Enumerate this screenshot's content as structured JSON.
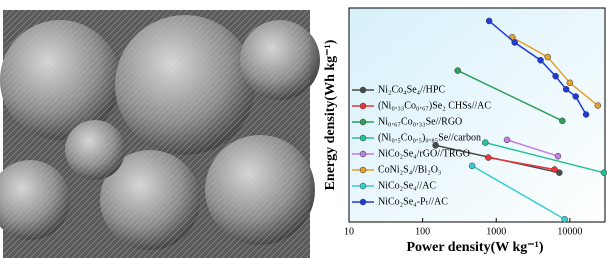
{
  "chart_data": {
    "type": "line",
    "x_label": "Power density(W kg⁻¹)",
    "y_label": "Energy density(Wh kg⁻¹)",
    "log_x": true,
    "log_y": true,
    "xlim": [
      10,
      30000
    ],
    "xticks": [
      10,
      100,
      1000,
      10000
    ],
    "ylim": [
      10,
      100
    ],
    "legend": "center-left",
    "series": [
      {
        "name": "Ni₂Co₄Se₄//HPC",
        "color": "#4a4a4a",
        "x": [
          150,
          7200
        ],
        "values": [
          22.8,
          17
        ]
      },
      {
        "name": "(Ni₀.₃₃Co₀.₆₇)Se₂ CHSs//AC",
        "color": "#e8363c",
        "x": [
          780,
          6200
        ],
        "values": [
          20,
          17.6
        ]
      },
      {
        "name": "Ni₀.₆₇Co₀.₃₃Se//RGO",
        "color": "#2f9e5a",
        "x": [
          300,
          7900
        ],
        "values": [
          51,
          29.7
        ]
      },
      {
        "name": "(Ni₀.₅Co₀.₅)₀.₈₅Se//carbon",
        "color": "#27c196",
        "x": [
          710,
          29000
        ],
        "values": [
          23.5,
          17
        ]
      },
      {
        "name": "NiCo₂Se₄/rGO//TRGO",
        "color": "#c27ee8",
        "x": [
          1400,
          6900
        ],
        "values": [
          24.2,
          20.3
        ]
      },
      {
        "name": "CoNi₂S₄//Bi₂O₃",
        "color": "#e2a22c",
        "x": [
          1650,
          5000,
          10000,
          24000
        ],
        "values": [
          73,
          59,
          44.7,
          35
        ]
      },
      {
        "name": "NiCo₂Se₄//AC",
        "color": "#35cfd0",
        "x": [
          470,
          8500
        ],
        "values": [
          18.3,
          10.3
        ]
      },
      {
        "name": "NiCo₂Se₄-Pₜ//AC",
        "color": "#1f3ad6",
        "x": [
          800,
          1780,
          4000,
          6400,
          8900,
          12000,
          16600
        ],
        "values": [
          87,
          69,
          57,
          48,
          41.7,
          38.6,
          31.8
        ]
      }
    ]
  }
}
